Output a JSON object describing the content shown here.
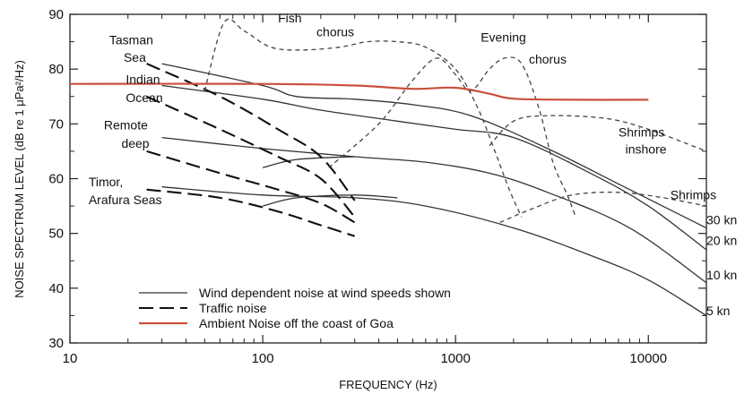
{
  "chart_data": {
    "type": "line",
    "xlabel": "FREQUENCY (Hz)",
    "ylabel": "NOISE SPECTRUM LEVEL (dB re 1 μPa²/Hz)",
    "x_scale": "log",
    "xlim": [
      10,
      20000
    ],
    "ylim": [
      30,
      90
    ],
    "x_ticks": [
      10,
      100,
      1000,
      10000
    ],
    "x_tick_labels": [
      "10",
      "100",
      "1000",
      "10000"
    ],
    "y_ticks": [
      30,
      40,
      50,
      60,
      70,
      80,
      90
    ],
    "y_tick_labels": [
      "30",
      "40",
      "50",
      "60",
      "70",
      "80",
      "90"
    ],
    "grid": false,
    "legend_position": "bottom-left",
    "legend": [
      {
        "label": "Wind dependent noise at wind speeds shown",
        "style": "solid",
        "color": "#333333"
      },
      {
        "label": "Traffic noise",
        "style": "long-dash",
        "color": "#111111"
      },
      {
        "label": "Ambient Noise off the coast of  Goa",
        "style": "solid",
        "color": "#c8503c"
      }
    ],
    "series": [
      {
        "name": "30 kn",
        "style": "solid",
        "color": "#333333",
        "points": [
          [
            30,
            81
          ],
          [
            100,
            77
          ],
          [
            150,
            75
          ],
          [
            300,
            74.5
          ],
          [
            600,
            73.5
          ],
          [
            1200,
            71.5
          ],
          [
            3000,
            65.5
          ],
          [
            8000,
            58
          ],
          [
            20000,
            51
          ]
        ]
      },
      {
        "name": "20 kn",
        "style": "solid",
        "color": "#333333",
        "points": [
          [
            30,
            77
          ],
          [
            100,
            74.5
          ],
          [
            200,
            72.5
          ],
          [
            500,
            70.5
          ],
          [
            1000,
            69
          ],
          [
            2000,
            67.5
          ],
          [
            5000,
            61
          ],
          [
            10000,
            55
          ],
          [
            20000,
            47
          ]
        ]
      },
      {
        "name": "10 kn",
        "style": "solid",
        "color": "#333333",
        "points": [
          [
            30,
            67.5
          ],
          [
            100,
            65.5
          ],
          [
            300,
            64
          ],
          [
            700,
            63
          ],
          [
            1500,
            61
          ],
          [
            3000,
            57.5
          ],
          [
            8000,
            51
          ],
          [
            20000,
            41
          ]
        ]
      },
      {
        "name": "5 kn",
        "style": "solid",
        "color": "#333333",
        "points": [
          [
            30,
            58.5
          ],
          [
            100,
            57
          ],
          [
            300,
            56.5
          ],
          [
            700,
            55
          ],
          [
            2000,
            51
          ],
          [
            5000,
            46
          ],
          [
            10000,
            41.5
          ],
          [
            20000,
            35
          ]
        ]
      },
      {
        "name": "Wind 5 kn low-frequency rise",
        "style": "solid",
        "color": "#333333",
        "points": [
          [
            100,
            55
          ],
          [
            150,
            56.5
          ],
          [
            300,
            57
          ],
          [
            500,
            56.5
          ]
        ]
      },
      {
        "name": "Wind 10 kn low-frequency rise",
        "style": "solid",
        "color": "#333333",
        "points": [
          [
            100,
            62
          ],
          [
            150,
            63.5
          ],
          [
            300,
            64
          ]
        ]
      },
      {
        "name": "Tasman Sea",
        "style": "long-dash",
        "color": "#111111",
        "points": [
          [
            25,
            81
          ],
          [
            60,
            75
          ],
          [
            120,
            69
          ],
          [
            200,
            64
          ],
          [
            300,
            56
          ]
        ]
      },
      {
        "name": "Indian Ocean",
        "style": "long-dash",
        "color": "#111111",
        "points": [
          [
            25,
            75
          ],
          [
            60,
            69
          ],
          [
            120,
            64
          ],
          [
            200,
            60
          ],
          [
            300,
            53
          ]
        ]
      },
      {
        "name": "Remote deep",
        "style": "long-dash",
        "color": "#111111",
        "points": [
          [
            25,
            65
          ],
          [
            60,
            61
          ],
          [
            120,
            58
          ],
          [
            200,
            55.5
          ],
          [
            300,
            52
          ]
        ]
      },
      {
        "name": "Timor, Arafura Seas",
        "style": "long-dash",
        "color": "#111111",
        "points": [
          [
            25,
            58
          ],
          [
            60,
            56.5
          ],
          [
            120,
            54
          ],
          [
            200,
            51.5
          ],
          [
            300,
            49.5
          ]
        ]
      },
      {
        "name": "Fish chorus",
        "style": "dotted",
        "color": "#444444",
        "points": [
          [
            50,
            76
          ],
          [
            63,
            88.5
          ],
          [
            80,
            87
          ],
          [
            110,
            84
          ],
          [
            160,
            83.5
          ],
          [
            250,
            84
          ],
          [
            350,
            85
          ],
          [
            500,
            85
          ],
          [
            700,
            84
          ],
          [
            1000,
            80
          ],
          [
            1300,
            73
          ],
          [
            1600,
            65
          ],
          [
            1900,
            58
          ],
          [
            2200,
            53
          ]
        ]
      },
      {
        "name": "Evening chorus",
        "style": "dotted",
        "color": "#444444",
        "points": [
          [
            220,
            62
          ],
          [
            400,
            70
          ],
          [
            600,
            78
          ],
          [
            800,
            82
          ],
          [
            1000,
            79
          ],
          [
            1200,
            76
          ],
          [
            1500,
            80
          ],
          [
            1800,
            82
          ],
          [
            2200,
            81
          ],
          [
            2700,
            73
          ],
          [
            3200,
            63
          ],
          [
            3800,
            57
          ],
          [
            4200,
            53
          ]
        ]
      },
      {
        "name": "Shrimps inshore",
        "style": "dotted",
        "color": "#444444",
        "points": [
          [
            1500,
            66
          ],
          [
            2000,
            70.5
          ],
          [
            3000,
            71.5
          ],
          [
            6000,
            71
          ],
          [
            10000,
            69
          ],
          [
            20000,
            65
          ]
        ]
      },
      {
        "name": "Shrimps",
        "style": "dotted",
        "color": "#444444",
        "points": [
          [
            1700,
            52
          ],
          [
            2500,
            54.5
          ],
          [
            4000,
            57
          ],
          [
            7000,
            57.5
          ],
          [
            12000,
            56.5
          ],
          [
            20000,
            55
          ]
        ]
      },
      {
        "name": "Ambient Noise off the coast of  Goa",
        "style": "solid",
        "color": "#c8503c",
        "points": [
          [
            10,
            77.3
          ],
          [
            100,
            77.3
          ],
          [
            300,
            77
          ],
          [
            600,
            76.4
          ],
          [
            1000,
            76.6
          ],
          [
            1500,
            75.5
          ],
          [
            2000,
            74.6
          ],
          [
            4000,
            74.4
          ],
          [
            10000,
            74.4
          ]
        ]
      }
    ],
    "annotations": [
      {
        "text": "Fish",
        "x": 120,
        "y": 88.5
      },
      {
        "text": "chorus",
        "x": 190,
        "y": 86
      },
      {
        "text": "Evening",
        "x": 1350,
        "y": 85
      },
      {
        "text": "chorus",
        "x": 2400,
        "y": 81
      },
      {
        "text": "Tasman",
        "x": 16,
        "y": 84.5
      },
      {
        "text": "Sea",
        "x": 19,
        "y": 81.3
      },
      {
        "text": "Indian",
        "x": 19.5,
        "y": 77.3
      },
      {
        "text": "Ocean",
        "x": 19.5,
        "y": 74
      },
      {
        "text": "Remote",
        "x": 15,
        "y": 69
      },
      {
        "text": "deep",
        "x": 18.5,
        "y": 65.6
      },
      {
        "text": "Timor,",
        "x": 12.5,
        "y": 58.6
      },
      {
        "text": "Arafura Seas",
        "x": 12.5,
        "y": 55.3
      },
      {
        "text": "Shrimps",
        "x": 7000,
        "y": 67.7
      },
      {
        "text": "inshore",
        "x": 7600,
        "y": 64.6
      },
      {
        "text": "Shrimps",
        "x": 13000,
        "y": 56.2
      },
      {
        "text": "30 kn",
        "x": 20000,
        "y": 51.7
      },
      {
        "text": "20 kn",
        "x": 20000,
        "y": 47.9
      },
      {
        "text": "10 kn",
        "x": 20000,
        "y": 41.6
      },
      {
        "text": "5 kn",
        "x": 20000,
        "y": 35.1
      }
    ]
  }
}
